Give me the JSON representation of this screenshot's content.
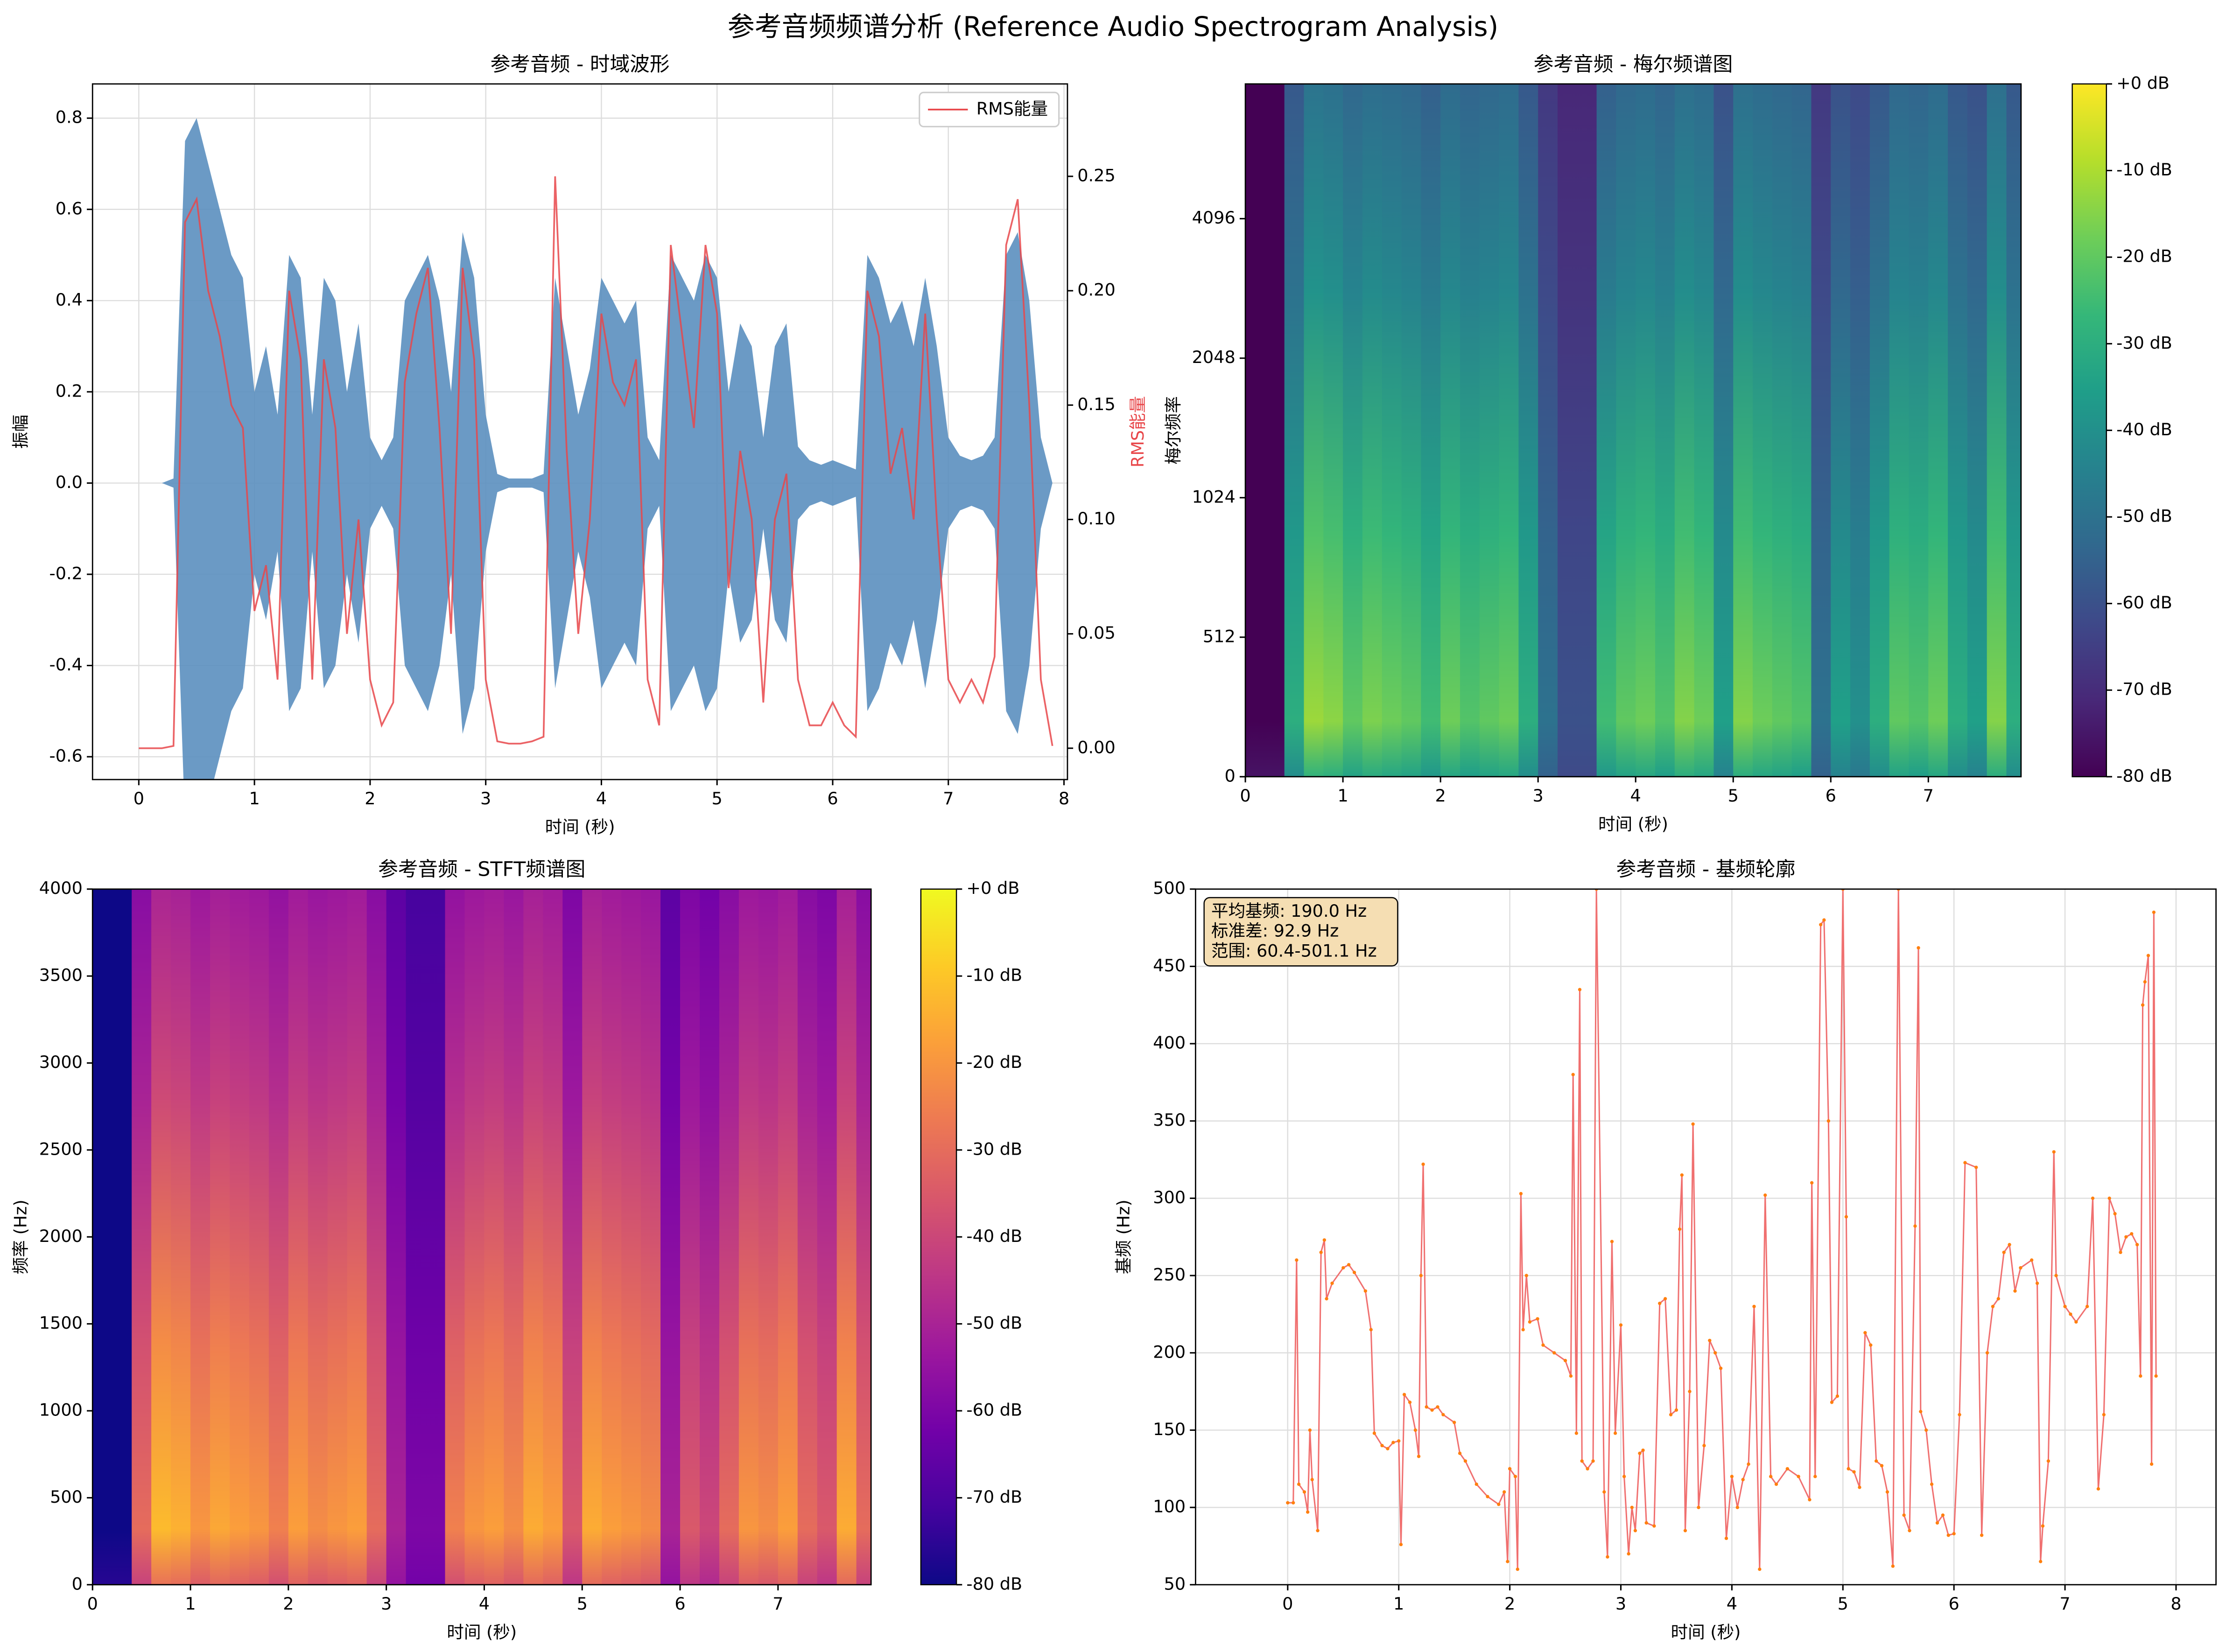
{
  "title": "参考音频频谱分析 (Reference Audio Spectrogram Analysis)",
  "chart_data": [
    {
      "type": "waveform",
      "title": "参考音频 - 时域波形",
      "xlabel": "时间 (秒)",
      "ylabel": "振幅",
      "y2label": "RMS能量",
      "xlim": [
        -0.4,
        8.03
      ],
      "ylim": [
        -0.65,
        0.875
      ],
      "y2lim": [
        -0.0137,
        0.2904
      ],
      "grid": true,
      "legend": "upper right",
      "xticks": [
        0,
        1,
        2,
        3,
        4,
        5,
        6,
        7,
        8
      ],
      "yticks": [
        -0.6,
        -0.4,
        -0.2,
        {
          "value": 0,
          "label": "0.0"
        },
        0.2,
        0.4,
        0.6,
        0.8
      ],
      "y2ticks": [
        {
          "value": 0,
          "label": "0.00"
        },
        0.05,
        {
          "value": 0.1,
          "label": "0.10"
        },
        0.15,
        {
          "value": 0.2,
          "label": "0.20"
        },
        0.25
      ],
      "x": [
        0,
        0.1,
        0.2,
        0.3,
        0.4,
        0.5,
        0.6,
        0.7,
        0.8,
        0.9,
        1,
        1.1,
        1.2,
        1.3,
        1.4,
        1.5,
        1.6,
        1.7,
        1.8,
        1.9,
        2,
        2.1,
        2.2,
        2.3,
        2.4,
        2.5,
        2.6,
        2.7,
        2.8,
        2.9,
        3,
        3.1,
        3.2,
        3.3,
        3.4,
        3.5,
        3.6,
        3.7,
        3.8,
        3.9,
        4,
        4.1,
        4.2,
        4.3,
        4.4,
        4.5,
        4.6,
        4.7,
        4.8,
        4.9,
        5,
        5.1,
        5.2,
        5.3,
        5.4,
        5.5,
        5.6,
        5.7,
        5.8,
        5.9,
        6,
        6.1,
        6.2,
        6.3,
        6.4,
        6.5,
        6.6,
        6.7,
        6.8,
        6.9,
        7,
        7.1,
        7.2,
        7.3,
        7.4,
        7.5,
        7.6,
        7.7,
        7.8,
        7.9
      ],
      "series": [
        {
          "name": "波形",
          "color": "#5b8fbf",
          "values": [
            0,
            0,
            0,
            0.01,
            0.75,
            0.8,
            0.7,
            0.6,
            0.5,
            0.45,
            0.2,
            0.3,
            0.15,
            0.5,
            0.45,
            0.15,
            0.45,
            0.4,
            0.2,
            0.35,
            0.1,
            0.05,
            0.1,
            0.4,
            0.45,
            0.5,
            0.4,
            0.2,
            0.55,
            0.45,
            0.15,
            0.02,
            0.01,
            0.01,
            0.01,
            0.02,
            0.45,
            0.3,
            0.15,
            0.25,
            0.45,
            0.4,
            0.35,
            0.4,
            0.1,
            0.05,
            0.5,
            0.45,
            0.4,
            0.5,
            0.45,
            0.2,
            0.35,
            0.3,
            0.1,
            0.3,
            0.35,
            0.08,
            0.05,
            0.04,
            0.05,
            0.04,
            0.03,
            0.5,
            0.45,
            0.35,
            0.4,
            0.3,
            0.45,
            0.3,
            0.1,
            0.06,
            0.05,
            0.06,
            0.1,
            0.5,
            0.55,
            0.4,
            0.1,
            0
          ]
        },
        {
          "name": "RMS能量",
          "color": "#e8474a",
          "axis": "y2",
          "values": [
            0,
            0,
            0,
            0.001,
            0.23,
            0.24,
            0.2,
            0.18,
            0.15,
            0.14,
            0.06,
            0.08,
            0.03,
            0.2,
            0.17,
            0.03,
            0.17,
            0.14,
            0.05,
            0.1,
            0.03,
            0.01,
            0.02,
            0.16,
            0.19,
            0.21,
            0.14,
            0.05,
            0.21,
            0.17,
            0.03,
            0.003,
            0.002,
            0.002,
            0.003,
            0.005,
            0.25,
            0.13,
            0.05,
            0.1,
            0.19,
            0.16,
            0.15,
            0.17,
            0.03,
            0.01,
            0.22,
            0.18,
            0.14,
            0.22,
            0.19,
            0.07,
            0.13,
            0.1,
            0.02,
            0.1,
            0.12,
            0.03,
            0.01,
            0.01,
            0.02,
            0.01,
            0.005,
            0.2,
            0.18,
            0.12,
            0.14,
            0.1,
            0.19,
            0.1,
            0.03,
            0.02,
            0.03,
            0.02,
            0.04,
            0.22,
            0.24,
            0.15,
            0.03,
            0.001
          ]
        }
      ]
    },
    {
      "type": "heatmap",
      "title": "参考音频 - 梅尔频谱图",
      "xlabel": "时间 (秒)",
      "ylabel": "梅尔频率",
      "xlim": [
        0,
        7.95
      ],
      "ylim": [
        0,
        8000
      ],
      "yscale": "symlog",
      "linthresh": 512,
      "xticks": [
        0,
        1,
        2,
        3,
        4,
        5,
        6,
        7
      ],
      "yticks": [
        0,
        512,
        1024,
        2048,
        4096
      ],
      "colormap": [
        "#440154",
        "#482878",
        "#3e4989",
        "#31688e",
        "#26828e",
        "#1f9e89",
        "#35b779",
        "#6ece58",
        "#b5de2b",
        "#fde725"
      ],
      "clim": [
        -80,
        0
      ],
      "cticks": [
        {
          "value": 0,
          "label": "+0 dB"
        },
        {
          "value": -10,
          "label": "-10 dB"
        },
        {
          "value": -20,
          "label": "-20 dB"
        },
        {
          "value": -30,
          "label": "-30 dB"
        },
        {
          "value": -40,
          "label": "-40 dB"
        },
        {
          "value": -50,
          "label": "-50 dB"
        },
        {
          "value": -60,
          "label": "-60 dB"
        },
        {
          "value": -70,
          "label": "-70 dB"
        },
        {
          "value": -80,
          "label": "-80 dB"
        }
      ],
      "x": [
        0,
        0.2,
        0.4,
        0.6,
        0.8,
        1,
        1.2,
        1.4,
        1.6,
        1.8,
        2,
        2.2,
        2.4,
        2.6,
        2.8,
        3,
        3.2,
        3.4,
        3.6,
        3.8,
        4,
        4.2,
        4.4,
        4.6,
        4.8,
        5,
        5.2,
        5.4,
        5.6,
        5.8,
        6,
        6.2,
        6.4,
        6.6,
        6.8,
        7,
        7.2,
        7.4,
        7.6,
        7.8
      ],
      "values": [
        -80,
        -80,
        -30,
        -12,
        -14,
        -20,
        -16,
        -18,
        -20,
        -25,
        -18,
        -22,
        -20,
        -18,
        -30,
        -50,
        -60,
        -60,
        -25,
        -20,
        -18,
        -22,
        -15,
        -18,
        -35,
        -15,
        -18,
        -20,
        -22,
        -50,
        -35,
        -40,
        -30,
        -20,
        -22,
        -18,
        -30,
        -35,
        -15,
        -30
      ]
    },
    {
      "type": "heatmap",
      "title": "参考音频 - STFT频谱图",
      "xlabel": "时间 (秒)",
      "ylabel": "频率 (Hz)",
      "xlim": [
        0,
        7.95
      ],
      "ylim": [
        0,
        4000
      ],
      "xticks": [
        0,
        1,
        2,
        3,
        4,
        5,
        6,
        7
      ],
      "yticks": [
        0,
        500,
        1000,
        1500,
        2000,
        2500,
        3000,
        3500,
        4000
      ],
      "colormap": [
        "#0d0887",
        "#46039f",
        "#7201a8",
        "#9c179e",
        "#bd3786",
        "#d8576b",
        "#ed7953",
        "#fb9f3a",
        "#fdca26",
        "#f0f921"
      ],
      "clim": [
        -80,
        0
      ],
      "cticks": [
        {
          "value": 0,
          "label": "+0 dB"
        },
        {
          "value": -10,
          "label": "-10 dB"
        },
        {
          "value": -20,
          "label": "-20 dB"
        },
        {
          "value": -30,
          "label": "-30 dB"
        },
        {
          "value": -40,
          "label": "-40 dB"
        },
        {
          "value": -50,
          "label": "-50 dB"
        },
        {
          "value": -60,
          "label": "-60 dB"
        },
        {
          "value": -70,
          "label": "-70 dB"
        },
        {
          "value": -80,
          "label": "-80 dB"
        }
      ],
      "x": [
        0,
        0.2,
        0.4,
        0.6,
        0.8,
        1,
        1.2,
        1.4,
        1.6,
        1.8,
        2,
        2.2,
        2.4,
        2.6,
        2.8,
        3,
        3.2,
        3.4,
        3.6,
        3.8,
        4,
        4.2,
        4.4,
        4.6,
        4.8,
        5,
        5.2,
        5.4,
        5.6,
        5.8,
        6,
        6.2,
        6.4,
        6.6,
        6.8,
        7,
        7.2,
        7.4,
        7.6,
        7.8
      ],
      "values": [
        -80,
        -80,
        -30,
        -12,
        -14,
        -20,
        -16,
        -18,
        -20,
        -25,
        -18,
        -22,
        -20,
        -18,
        -30,
        -50,
        -60,
        -60,
        -25,
        -20,
        -18,
        -22,
        -15,
        -18,
        -35,
        -15,
        -18,
        -20,
        -22,
        -50,
        -35,
        -40,
        -30,
        -20,
        -22,
        -18,
        -30,
        -35,
        -15,
        -30
      ]
    },
    {
      "type": "line",
      "title": "参考音频 - 基频轮廓",
      "xlabel": "时间 (秒)",
      "ylabel": "基频 (Hz)",
      "xlim": [
        -0.83,
        8.36
      ],
      "ylim": [
        50,
        500
      ],
      "grid": true,
      "xticks": [
        0,
        1,
        2,
        3,
        4,
        5,
        6,
        7,
        8
      ],
      "yticks": [
        50,
        100,
        150,
        200,
        250,
        300,
        350,
        400,
        450,
        500
      ],
      "annotations": [
        "平均基频: 190.0 Hz",
        "标准差: 92.9 Hz",
        "范围: 60.4-501.1 Hz"
      ],
      "color": "#f07070",
      "marker_color": "#ff7f0e",
      "x": [
        0,
        0.05,
        0.08,
        0.1,
        0.15,
        0.18,
        0.2,
        0.22,
        0.27,
        0.3,
        0.33,
        0.35,
        0.4,
        0.5,
        0.55,
        0.6,
        0.7,
        0.75,
        0.78,
        0.85,
        0.9,
        0.95,
        1,
        1.02,
        1.05,
        1.1,
        1.15,
        1.18,
        1.2,
        1.22,
        1.25,
        1.3,
        1.35,
        1.4,
        1.5,
        1.55,
        1.6,
        1.7,
        1.8,
        1.9,
        1.95,
        1.98,
        2,
        2.05,
        2.07,
        2.1,
        2.12,
        2.15,
        2.18,
        2.25,
        2.3,
        2.4,
        2.5,
        2.55,
        2.57,
        2.6,
        2.63,
        2.65,
        2.7,
        2.75,
        2.78,
        2.85,
        2.88,
        2.92,
        2.95,
        3,
        3.03,
        3.07,
        3.1,
        3.13,
        3.17,
        3.2,
        3.23,
        3.3,
        3.35,
        3.4,
        3.45,
        3.5,
        3.53,
        3.55,
        3.58,
        3.62,
        3.65,
        3.7,
        3.75,
        3.8,
        3.85,
        3.9,
        3.95,
        4,
        4.05,
        4.1,
        4.15,
        4.2,
        4.25,
        4.3,
        4.35,
        4.4,
        4.5,
        4.6,
        4.7,
        4.72,
        4.75,
        4.8,
        4.83,
        4.87,
        4.9,
        4.95,
        5,
        5.03,
        5.05,
        5.1,
        5.15,
        5.2,
        5.25,
        5.3,
        5.35,
        5.4,
        5.45,
        5.5,
        5.55,
        5.6,
        5.65,
        5.68,
        5.7,
        5.75,
        5.8,
        5.85,
        5.9,
        5.95,
        6,
        6.05,
        6.1,
        6.2,
        6.25,
        6.3,
        6.35,
        6.4,
        6.45,
        6.5,
        6.55,
        6.6,
        6.7,
        6.75,
        6.78,
        6.8,
        6.85,
        6.9,
        6.92,
        7,
        7.05,
        7.1,
        7.2,
        7.25,
        7.3,
        7.35,
        7.4,
        7.45,
        7.5,
        7.55,
        7.6,
        7.65,
        7.68,
        7.7,
        7.72,
        7.75,
        7.78,
        7.8,
        7.82
      ],
      "values": [
        103,
        103,
        260,
        115,
        110,
        97,
        150,
        118,
        85,
        265,
        273,
        235,
        245,
        255,
        257,
        252,
        240,
        215,
        148,
        140,
        138,
        142,
        143,
        76,
        173,
        168,
        150,
        133,
        250,
        322,
        165,
        163,
        165,
        160,
        155,
        135,
        130,
        115,
        107,
        102,
        110,
        65,
        125,
        120,
        60,
        303,
        215,
        250,
        220,
        222,
        205,
        200,
        195,
        185,
        380,
        148,
        435,
        130,
        125,
        130,
        500,
        110,
        68,
        272,
        148,
        218,
        120,
        70,
        100,
        85,
        135,
        137,
        90,
        88,
        232,
        235,
        160,
        163,
        280,
        315,
        85,
        175,
        348,
        100,
        140,
        208,
        200,
        190,
        80,
        120,
        100,
        118,
        128,
        230,
        60,
        302,
        120,
        115,
        125,
        120,
        105,
        310,
        120,
        477,
        480,
        350,
        168,
        172,
        500,
        288,
        125,
        123,
        113,
        213,
        205,
        130,
        127,
        110,
        62,
        500,
        95,
        85,
        282,
        462,
        162,
        150,
        115,
        90,
        95,
        82,
        83,
        160,
        323,
        320,
        82,
        200,
        230,
        235,
        265,
        270,
        240,
        255,
        260,
        245,
        65,
        88,
        130,
        330,
        250,
        230,
        225,
        220,
        230,
        300,
        112,
        160,
        300,
        290,
        265,
        275,
        277,
        270,
        185,
        425,
        440,
        457,
        128,
        485,
        185
      ]
    }
  ]
}
